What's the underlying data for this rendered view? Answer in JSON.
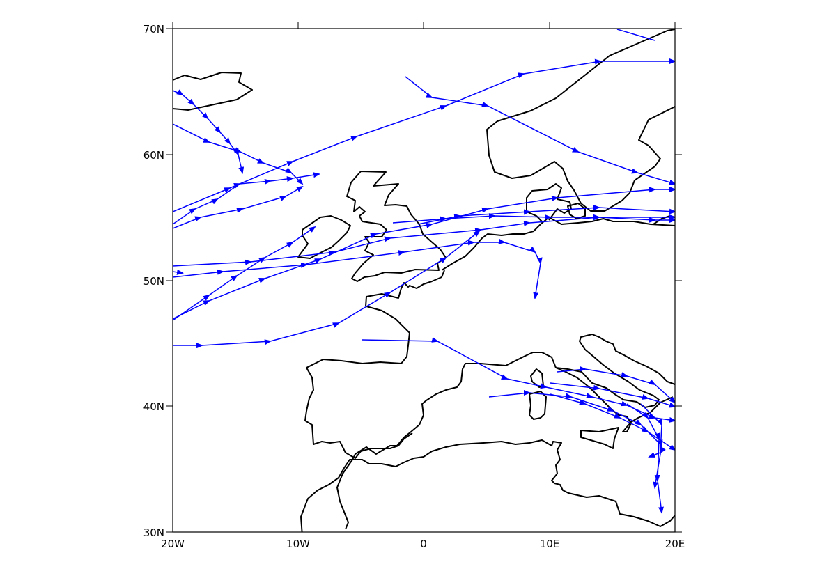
{
  "map": {
    "lon_range": [
      -20,
      20
    ],
    "lat_range": [
      30,
      70
    ],
    "x_tick_labels": [
      "20W",
      "10W",
      "0",
      "10E",
      "20E"
    ],
    "y_tick_labels": [
      "70N",
      "60N",
      "50N",
      "40N",
      "30N"
    ],
    "track_color": "#0000ff",
    "coastline_color": "#000000",
    "frame_color": "#000000",
    "tracks_description_note": "",
    "track_count": 24
  }
}
